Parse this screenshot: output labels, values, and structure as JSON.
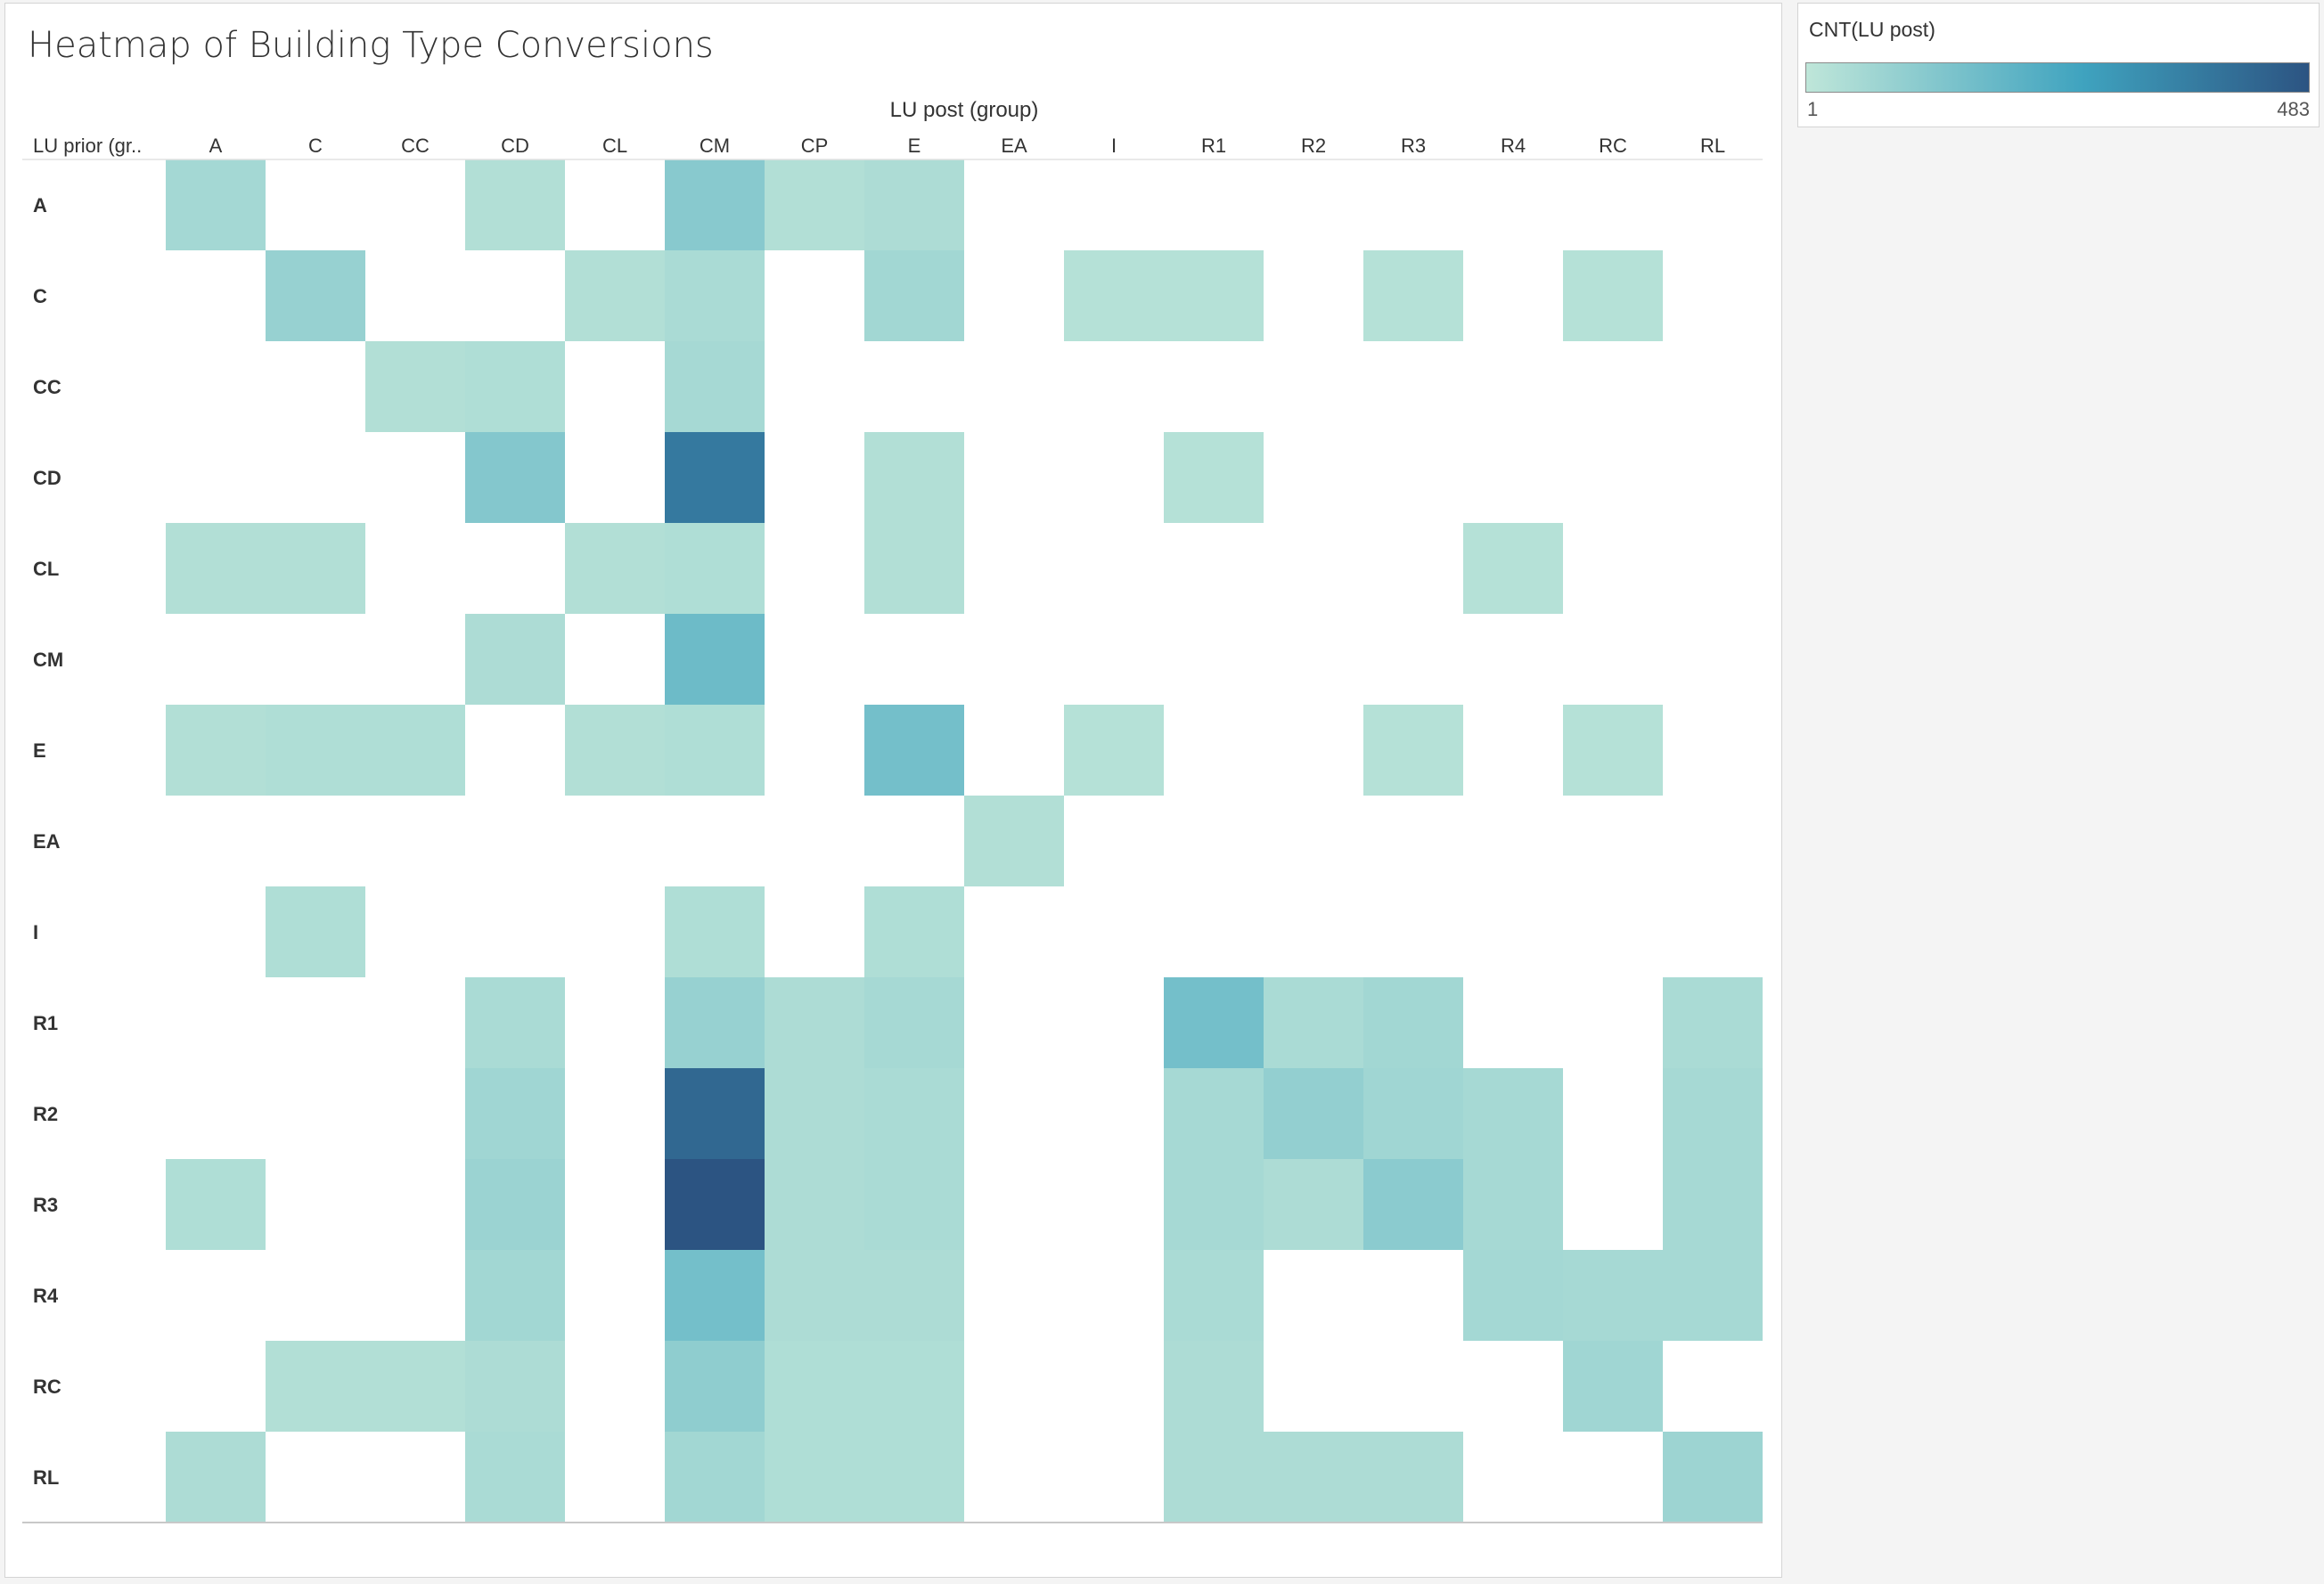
{
  "chart_data": {
    "type": "heatmap",
    "title": "Heatmap of Building Type Conversions",
    "x_group_label": "LU post (group)",
    "y_header_label": "LU prior (gr..",
    "x_categories": [
      "A",
      "C",
      "CC",
      "CD",
      "CL",
      "CM",
      "CP",
      "E",
      "EA",
      "I",
      "R1",
      "R2",
      "R3",
      "R4",
      "RC",
      "RL"
    ],
    "y_categories": [
      "A",
      "C",
      "CC",
      "CD",
      "CL",
      "CM",
      "E",
      "EA",
      "I",
      "R1",
      "R2",
      "R3",
      "R4",
      "RC",
      "RL"
    ],
    "legend": {
      "title": "CNT(LU post)",
      "min": 1,
      "max": 483,
      "min_label": "1",
      "max_label": "483",
      "color_low": "#bfe6d9",
      "color_mid": "#3fa3bf",
      "color_high": "#2c5482"
    },
    "cells": [
      {
        "prior": "A",
        "post": "A",
        "count": 20
      },
      {
        "prior": "A",
        "post": "CD",
        "count": 8
      },
      {
        "prior": "A",
        "post": "CM",
        "count": 55
      },
      {
        "prior": "A",
        "post": "CP",
        "count": 8
      },
      {
        "prior": "A",
        "post": "E",
        "count": 12
      },
      {
        "prior": "C",
        "post": "C",
        "count": 35
      },
      {
        "prior": "C",
        "post": "CL",
        "count": 8
      },
      {
        "prior": "C",
        "post": "CM",
        "count": 15
      },
      {
        "prior": "C",
        "post": "E",
        "count": 22
      },
      {
        "prior": "C",
        "post": "I",
        "count": 6
      },
      {
        "prior": "C",
        "post": "R1",
        "count": 6
      },
      {
        "prior": "C",
        "post": "R3",
        "count": 6
      },
      {
        "prior": "C",
        "post": "RC",
        "count": 6
      },
      {
        "prior": "CC",
        "post": "CC",
        "count": 8
      },
      {
        "prior": "CC",
        "post": "CD",
        "count": 10
      },
      {
        "prior": "CC",
        "post": "CM",
        "count": 18
      },
      {
        "prior": "CD",
        "post": "CD",
        "count": 60
      },
      {
        "prior": "CD",
        "post": "CM",
        "count": 330
      },
      {
        "prior": "CD",
        "post": "E",
        "count": 8
      },
      {
        "prior": "CD",
        "post": "R1",
        "count": 6
      },
      {
        "prior": "CL",
        "post": "A",
        "count": 8
      },
      {
        "prior": "CL",
        "post": "C",
        "count": 8
      },
      {
        "prior": "CL",
        "post": "CL",
        "count": 8
      },
      {
        "prior": "CL",
        "post": "CM",
        "count": 10
      },
      {
        "prior": "CL",
        "post": "E",
        "count": 8
      },
      {
        "prior": "CL",
        "post": "R4",
        "count": 6
      },
      {
        "prior": "CM",
        "post": "CD",
        "count": 12
      },
      {
        "prior": "CM",
        "post": "CM",
        "count": 95
      },
      {
        "prior": "E",
        "post": "A",
        "count": 8
      },
      {
        "prior": "E",
        "post": "C",
        "count": 10
      },
      {
        "prior": "E",
        "post": "CC",
        "count": 10
      },
      {
        "prior": "E",
        "post": "CL",
        "count": 8
      },
      {
        "prior": "E",
        "post": "CM",
        "count": 10
      },
      {
        "prior": "E",
        "post": "E",
        "count": 85
      },
      {
        "prior": "E",
        "post": "I",
        "count": 6
      },
      {
        "prior": "E",
        "post": "R3",
        "count": 6
      },
      {
        "prior": "E",
        "post": "RC",
        "count": 6
      },
      {
        "prior": "EA",
        "post": "EA",
        "count": 8
      },
      {
        "prior": "I",
        "post": "C",
        "count": 10
      },
      {
        "prior": "I",
        "post": "CM",
        "count": 10
      },
      {
        "prior": "I",
        "post": "E",
        "count": 10
      },
      {
        "prior": "R1",
        "post": "CD",
        "count": 15
      },
      {
        "prior": "R1",
        "post": "CM",
        "count": 35
      },
      {
        "prior": "R1",
        "post": "CP",
        "count": 12
      },
      {
        "prior": "R1",
        "post": "E",
        "count": 18
      },
      {
        "prior": "R1",
        "post": "R1",
        "count": 85
      },
      {
        "prior": "R1",
        "post": "R2",
        "count": 15
      },
      {
        "prior": "R1",
        "post": "R3",
        "count": 22
      },
      {
        "prior": "R1",
        "post": "RL",
        "count": 15
      },
      {
        "prior": "R2",
        "post": "CD",
        "count": 25
      },
      {
        "prior": "R2",
        "post": "CM",
        "count": 400
      },
      {
        "prior": "R2",
        "post": "CP",
        "count": 12
      },
      {
        "prior": "R2",
        "post": "E",
        "count": 15
      },
      {
        "prior": "R2",
        "post": "R1",
        "count": 18
      },
      {
        "prior": "R2",
        "post": "R2",
        "count": 40
      },
      {
        "prior": "R2",
        "post": "R3",
        "count": 25
      },
      {
        "prior": "R2",
        "post": "R4",
        "count": 18
      },
      {
        "prior": "R2",
        "post": "RL",
        "count": 18
      },
      {
        "prior": "R3",
        "post": "A",
        "count": 10
      },
      {
        "prior": "R3",
        "post": "CD",
        "count": 30
      },
      {
        "prior": "R3",
        "post": "CM",
        "count": 483
      },
      {
        "prior": "R3",
        "post": "CP",
        "count": 12
      },
      {
        "prior": "R3",
        "post": "E",
        "count": 15
      },
      {
        "prior": "R3",
        "post": "R1",
        "count": 18
      },
      {
        "prior": "R3",
        "post": "R2",
        "count": 12
      },
      {
        "prior": "R3",
        "post": "R3",
        "count": 50
      },
      {
        "prior": "R3",
        "post": "R4",
        "count": 18
      },
      {
        "prior": "R3",
        "post": "RL",
        "count": 18
      },
      {
        "prior": "R4",
        "post": "CD",
        "count": 22
      },
      {
        "prior": "R4",
        "post": "CM",
        "count": 85
      },
      {
        "prior": "R4",
        "post": "CP",
        "count": 12
      },
      {
        "prior": "R4",
        "post": "E",
        "count": 12
      },
      {
        "prior": "R4",
        "post": "R1",
        "count": 15
      },
      {
        "prior": "R4",
        "post": "R4",
        "count": 20
      },
      {
        "prior": "R4",
        "post": "RC",
        "count": 18
      },
      {
        "prior": "R4",
        "post": "RL",
        "count": 18
      },
      {
        "prior": "RC",
        "post": "C",
        "count": 8
      },
      {
        "prior": "RC",
        "post": "CC",
        "count": 8
      },
      {
        "prior": "RC",
        "post": "CD",
        "count": 12
      },
      {
        "prior": "RC",
        "post": "CM",
        "count": 45
      },
      {
        "prior": "RC",
        "post": "CP",
        "count": 10
      },
      {
        "prior": "RC",
        "post": "E",
        "count": 10
      },
      {
        "prior": "RC",
        "post": "R1",
        "count": 12
      },
      {
        "prior": "RC",
        "post": "RC",
        "count": 25
      },
      {
        "prior": "RL",
        "post": "A",
        "count": 12
      },
      {
        "prior": "RL",
        "post": "CD",
        "count": 15
      },
      {
        "prior": "RL",
        "post": "CM",
        "count": 22
      },
      {
        "prior": "RL",
        "post": "CP",
        "count": 10
      },
      {
        "prior": "RL",
        "post": "E",
        "count": 10
      },
      {
        "prior": "RL",
        "post": "R1",
        "count": 12
      },
      {
        "prior": "RL",
        "post": "R2",
        "count": 12
      },
      {
        "prior": "RL",
        "post": "R3",
        "count": 12
      },
      {
        "prior": "RL",
        "post": "RL",
        "count": 28
      }
    ]
  }
}
